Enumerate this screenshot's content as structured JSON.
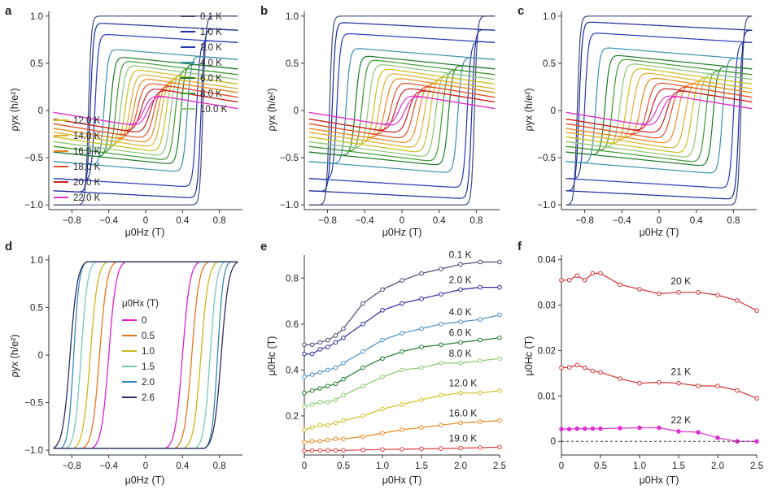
{
  "panels": {
    "a": {
      "letter": "a",
      "xlabel": "μ0Hz (T)",
      "ylabel": "ρyx (h/e²)"
    },
    "b": {
      "letter": "b",
      "xlabel": "μ0Hz (T)",
      "ylabel": "ρyx (h/e²)"
    },
    "c": {
      "letter": "c",
      "xlabel": "μ0Hz (T)",
      "ylabel": "ρyx (h/e²)"
    },
    "d": {
      "letter": "d",
      "xlabel": "μ0Hz (T)",
      "ylabel": "ρyx (h/e²)",
      "legend_title": "μ0Hx (T)"
    },
    "e": {
      "letter": "e",
      "xlabel": "μ0Hx (T)",
      "ylabel": "μ0Hc (T)"
    },
    "f": {
      "letter": "f",
      "xlabel": "μ0Hx (T)",
      "ylabel": "μ0Hc (T)"
    }
  },
  "chart_data": [
    {
      "id": "a",
      "type": "line",
      "xlim": [
        -1.05,
        1.05
      ],
      "ylim": [
        -1.05,
        1.05
      ],
      "xticks": [
        "-0.8",
        "-0.4",
        "0",
        "0.4",
        "0.8"
      ],
      "yticks": [
        "-1.0",
        "-0.5",
        "0",
        "0.5",
        "1.0"
      ],
      "legend": [
        "0.1 K",
        "1.0 K",
        "2.0 K",
        "4.0 K",
        "6.0 K",
        "8.0 K",
        "10.0 K",
        "12.0 K",
        "14.0 K",
        "16.0 K",
        "18.0 K",
        "20.0 K",
        "22.0 K"
      ],
      "series": [
        {
          "name": "0.1 K",
          "color": "#3f4a7a",
          "amp": 1.0,
          "hc": 0.62,
          "slope": 0.0
        },
        {
          "name": "1.0 K",
          "color": "#1a2a9a",
          "amp": 0.9,
          "hc": 0.6,
          "slope": 0.05
        },
        {
          "name": "2.0 K",
          "color": "#2838b8",
          "amp": 0.78,
          "hc": 0.55,
          "slope": 0.06
        },
        {
          "name": "4.0 K",
          "color": "#3a8fb0",
          "amp": 0.62,
          "hc": 0.45,
          "slope": 0.08
        },
        {
          "name": "6.0 K",
          "color": "#1e7a2a",
          "amp": 0.54,
          "hc": 0.38,
          "slope": 0.1
        },
        {
          "name": "8.0 K",
          "color": "#3e9a30",
          "amp": 0.5,
          "hc": 0.32,
          "slope": 0.12
        },
        {
          "name": "10.0 K",
          "color": "#8fc47a",
          "amp": 0.46,
          "hc": 0.27,
          "slope": 0.13
        },
        {
          "name": "12.0 K",
          "color": "#c8c020",
          "amp": 0.42,
          "hc": 0.22,
          "slope": 0.14
        },
        {
          "name": "14.0 K",
          "color": "#e0b030",
          "amp": 0.38,
          "hc": 0.17,
          "slope": 0.15
        },
        {
          "name": "16.0 K",
          "color": "#e88a20",
          "amp": 0.34,
          "hc": 0.13,
          "slope": 0.15
        },
        {
          "name": "18.0 K",
          "color": "#e05028",
          "amp": 0.3,
          "hc": 0.09,
          "slope": 0.16
        },
        {
          "name": "20.0 K",
          "color": "#c82020",
          "amp": 0.25,
          "hc": 0.05,
          "slope": 0.16
        },
        {
          "name": "22.0 K",
          "color": "#e030c8",
          "amp": 0.18,
          "hc": 0.02,
          "slope": 0.16
        }
      ]
    },
    {
      "id": "b",
      "type": "line",
      "xlim": [
        -1.05,
        1.05
      ],
      "ylim": [
        -1.05,
        1.05
      ],
      "xticks": [
        "-0.8",
        "-0.4",
        "0",
        "0.4",
        "0.8"
      ],
      "yticks": [
        "-1.0",
        "-0.5",
        "0",
        "0.5",
        "1.0"
      ],
      "series": [
        {
          "name": "0.1 K",
          "color": "#3f4a7a",
          "amp": 1.0,
          "hc": 0.78,
          "slope": 0.0
        },
        {
          "name": "1.0 K",
          "color": "#1a2a9a",
          "amp": 0.9,
          "hc": 0.75,
          "slope": 0.05
        },
        {
          "name": "2.0 K",
          "color": "#2838b8",
          "amp": 0.78,
          "hc": 0.7,
          "slope": 0.06
        },
        {
          "name": "4.0 K",
          "color": "#3a8fb0",
          "amp": 0.62,
          "hc": 0.6,
          "slope": 0.08
        },
        {
          "name": "6.0 K",
          "color": "#1e7a2a",
          "amp": 0.54,
          "hc": 0.5,
          "slope": 0.1
        },
        {
          "name": "8.0 K",
          "color": "#3e9a30",
          "amp": 0.5,
          "hc": 0.43,
          "slope": 0.12
        },
        {
          "name": "10.0 K",
          "color": "#8fc47a",
          "amp": 0.46,
          "hc": 0.36,
          "slope": 0.13
        },
        {
          "name": "12.0 K",
          "color": "#c8c020",
          "amp": 0.42,
          "hc": 0.3,
          "slope": 0.14
        },
        {
          "name": "14.0 K",
          "color": "#e0b030",
          "amp": 0.38,
          "hc": 0.24,
          "slope": 0.15
        },
        {
          "name": "16.0 K",
          "color": "#e88a20",
          "amp": 0.34,
          "hc": 0.18,
          "slope": 0.15
        },
        {
          "name": "18.0 K",
          "color": "#e05028",
          "amp": 0.3,
          "hc": 0.12,
          "slope": 0.16
        },
        {
          "name": "20.0 K",
          "color": "#c82020",
          "amp": 0.25,
          "hc": 0.07,
          "slope": 0.16
        },
        {
          "name": "22.0 K",
          "color": "#e030c8",
          "amp": 0.18,
          "hc": 0.03,
          "slope": 0.16
        }
      ]
    },
    {
      "id": "c",
      "type": "line",
      "xlim": [
        -1.05,
        1.05
      ],
      "ylim": [
        -1.05,
        1.05
      ],
      "xticks": [
        "-0.8",
        "-0.4",
        "0",
        "0.4",
        "0.8"
      ],
      "yticks": [
        "-1.0",
        "-0.5",
        "0",
        "0.5",
        "1.0"
      ],
      "series": [
        {
          "name": "0.1 K",
          "color": "#3f4a7a",
          "amp": 1.0,
          "hc": 0.88,
          "slope": 0.0
        },
        {
          "name": "1.0 K",
          "color": "#1a2a9a",
          "amp": 0.9,
          "hc": 0.86,
          "slope": 0.05
        },
        {
          "name": "2.0 K",
          "color": "#2838b8",
          "amp": 0.78,
          "hc": 0.8,
          "slope": 0.06
        },
        {
          "name": "4.0 K",
          "color": "#3a8fb0",
          "amp": 0.62,
          "hc": 0.68,
          "slope": 0.08
        },
        {
          "name": "6.0 K",
          "color": "#1e7a2a",
          "amp": 0.54,
          "hc": 0.58,
          "slope": 0.1
        },
        {
          "name": "8.0 K",
          "color": "#3e9a30",
          "amp": 0.5,
          "hc": 0.5,
          "slope": 0.12
        },
        {
          "name": "10.0 K",
          "color": "#8fc47a",
          "amp": 0.46,
          "hc": 0.42,
          "slope": 0.13
        },
        {
          "name": "12.0 K",
          "color": "#c8c020",
          "amp": 0.42,
          "hc": 0.35,
          "slope": 0.14
        },
        {
          "name": "14.0 K",
          "color": "#e0b030",
          "amp": 0.38,
          "hc": 0.28,
          "slope": 0.15
        },
        {
          "name": "16.0 K",
          "color": "#e88a20",
          "amp": 0.34,
          "hc": 0.2,
          "slope": 0.15
        },
        {
          "name": "18.0 K",
          "color": "#e05028",
          "amp": 0.3,
          "hc": 0.13,
          "slope": 0.16
        },
        {
          "name": "20.0 K",
          "color": "#c82020",
          "amp": 0.25,
          "hc": 0.08,
          "slope": 0.16
        },
        {
          "name": "22.0 K",
          "color": "#e030c8",
          "amp": 0.18,
          "hc": 0.03,
          "slope": 0.16
        }
      ]
    },
    {
      "id": "d",
      "type": "line",
      "xlim": [
        -1.05,
        1.05
      ],
      "ylim": [
        -1.05,
        1.05
      ],
      "xticks": [
        "-0.8",
        "-0.4",
        "0",
        "0.4",
        "0.8"
      ],
      "yticks": [
        "-1.0",
        "-0.5",
        "0",
        "0.5",
        "1.0"
      ],
      "legend_title": "μ0Hx (T)",
      "legend": [
        "0",
        "0.5",
        "1.0",
        "1.5",
        "2.0",
        "2.6"
      ],
      "series": [
        {
          "name": "0",
          "color": "#e020d0",
          "hc": 0.4,
          "width": 0.08
        },
        {
          "name": "0.5",
          "color": "#e87820",
          "hc": 0.5,
          "width": 0.08
        },
        {
          "name": "1.0",
          "color": "#c8b818",
          "hc": 0.6,
          "width": 0.08
        },
        {
          "name": "1.5",
          "color": "#7ac8b8",
          "hc": 0.7,
          "width": 0.07
        },
        {
          "name": "2.0",
          "color": "#3a88b8",
          "hc": 0.78,
          "width": 0.06
        },
        {
          "name": "2.6",
          "color": "#2a2f5a",
          "hc": 0.82,
          "width": 0.08
        }
      ]
    },
    {
      "id": "e",
      "type": "line",
      "xlim": [
        0,
        2.5
      ],
      "ylim": [
        0.03,
        0.9
      ],
      "xticks": [
        "0",
        "0.5",
        "1.0",
        "1.5",
        "2.0",
        "2.5"
      ],
      "yticks": [
        "0.2",
        "0.4",
        "0.6",
        "0.8"
      ],
      "x": [
        0,
        0.1,
        0.2,
        0.3,
        0.4,
        0.5,
        0.75,
        1.0,
        1.25,
        1.5,
        1.75,
        2.0,
        2.25,
        2.5
      ],
      "series": [
        {
          "name": "0.1 K",
          "color": "#454a70",
          "values": [
            0.51,
            0.51,
            0.52,
            0.53,
            0.55,
            0.58,
            0.69,
            0.75,
            0.79,
            0.82,
            0.84,
            0.86,
            0.87,
            0.87
          ]
        },
        {
          "name": "2.0 K",
          "color": "#2a2aa0",
          "values": [
            0.47,
            0.47,
            0.49,
            0.5,
            0.52,
            0.54,
            0.6,
            0.66,
            0.69,
            0.71,
            0.73,
            0.75,
            0.76,
            0.76
          ]
        },
        {
          "name": "4.0 K",
          "color": "#4a90c0",
          "values": [
            0.37,
            0.38,
            0.39,
            0.4,
            0.41,
            0.43,
            0.48,
            0.53,
            0.56,
            0.58,
            0.6,
            0.61,
            0.62,
            0.64
          ]
        },
        {
          "name": "6.0 K",
          "color": "#1e7a2a",
          "values": [
            0.3,
            0.31,
            0.32,
            0.33,
            0.34,
            0.36,
            0.41,
            0.45,
            0.48,
            0.5,
            0.51,
            0.52,
            0.53,
            0.54
          ]
        },
        {
          "name": "8.0 K",
          "color": "#8cc870",
          "values": [
            0.24,
            0.25,
            0.26,
            0.26,
            0.27,
            0.29,
            0.33,
            0.37,
            0.4,
            0.41,
            0.43,
            0.43,
            0.44,
            0.45
          ]
        },
        {
          "name": "12.0 K",
          "color": "#d0c020",
          "values": [
            0.14,
            0.15,
            0.16,
            0.16,
            0.17,
            0.18,
            0.2,
            0.23,
            0.25,
            0.27,
            0.29,
            0.3,
            0.3,
            0.31
          ]
        },
        {
          "name": "16.0 K",
          "color": "#e88a20",
          "values": [
            0.085,
            0.09,
            0.09,
            0.095,
            0.1,
            0.1,
            0.11,
            0.125,
            0.14,
            0.15,
            0.16,
            0.17,
            0.175,
            0.18
          ]
        },
        {
          "name": "19.0 K",
          "color": "#e04040",
          "values": [
            0.048,
            0.049,
            0.05,
            0.05,
            0.05,
            0.05,
            0.052,
            0.054,
            0.055,
            0.057,
            0.058,
            0.06,
            0.062,
            0.064
          ]
        }
      ]
    },
    {
      "id": "f",
      "type": "line",
      "xlim": [
        0,
        2.5
      ],
      "ylim": [
        -0.003,
        0.041
      ],
      "xticks": [
        "0",
        "0.5",
        "1.0",
        "1.5",
        "2.0",
        "2.5"
      ],
      "yticks": [
        "0",
        "0.01",
        "0.02",
        "0.03",
        "0.04"
      ],
      "series": [
        {
          "name": "20 K",
          "color": "#d03030",
          "filled": false,
          "x": [
            0,
            0.1,
            0.2,
            0.3,
            0.4,
            0.5,
            0.75,
            1.0,
            1.25,
            1.5,
            1.75,
            2.0,
            2.25,
            2.5
          ],
          "values": [
            0.0355,
            0.0355,
            0.0365,
            0.0355,
            0.037,
            0.037,
            0.0345,
            0.0335,
            0.0325,
            0.0328,
            0.0328,
            0.0322,
            0.031,
            0.0288
          ]
        },
        {
          "name": "21 K",
          "color": "#d03030",
          "filled": false,
          "x": [
            0,
            0.1,
            0.2,
            0.3,
            0.4,
            0.5,
            0.75,
            1.0,
            1.25,
            1.5,
            1.75,
            2.0,
            2.25,
            2.5
          ],
          "values": [
            0.0162,
            0.0163,
            0.0168,
            0.0162,
            0.0155,
            0.0152,
            0.0138,
            0.0128,
            0.013,
            0.0128,
            0.0122,
            0.0122,
            0.0112,
            0.0095
          ]
        },
        {
          "name": "22 K",
          "color": "#e030d0",
          "filled": true,
          "x": [
            0,
            0.1,
            0.2,
            0.3,
            0.4,
            0.5,
            0.75,
            1.0,
            1.25,
            1.5,
            1.75,
            2.0,
            2.25,
            2.5
          ],
          "values": [
            0.0027,
            0.0027,
            0.0028,
            0.0028,
            0.0028,
            0.0028,
            0.0029,
            0.003,
            0.003,
            0.0022,
            0.002,
            0.0008,
            0.0,
            0.0
          ]
        }
      ],
      "reference_line": 0
    }
  ]
}
